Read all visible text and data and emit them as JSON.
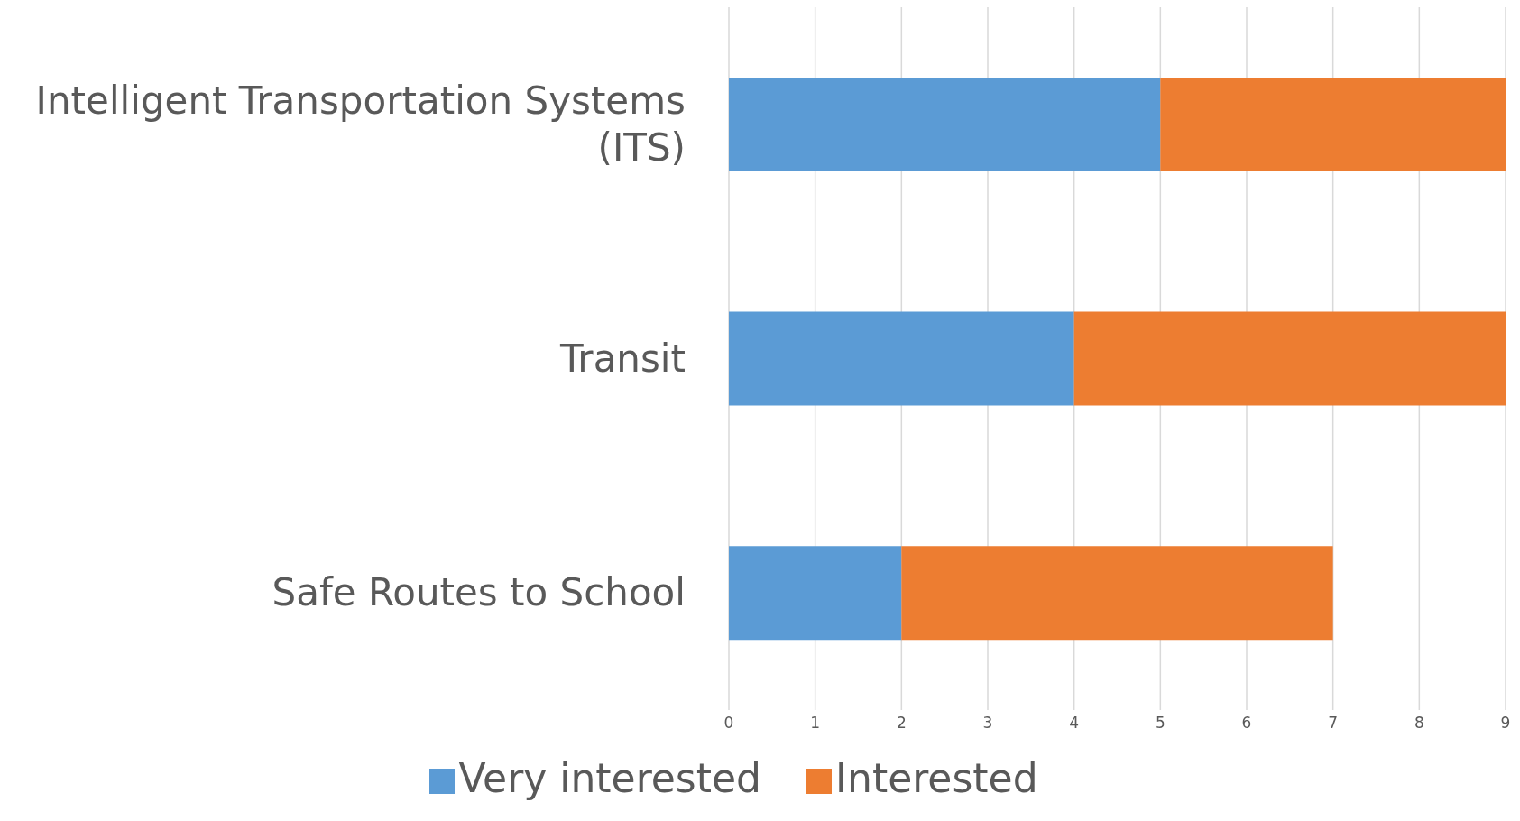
{
  "chart_data": {
    "type": "bar",
    "orientation": "horizontal",
    "stacked": true,
    "categories": [
      "Intelligent Transportation Systems (ITS)",
      "Transit",
      "Safe Routes to School"
    ],
    "series": [
      {
        "name": "Very interested",
        "color": "#5b9bd5",
        "values": [
          5,
          4,
          2
        ]
      },
      {
        "name": "Interested",
        "color": "#ed7d31",
        "values": [
          4,
          5,
          5
        ]
      }
    ],
    "xlim": [
      0,
      9
    ],
    "xticks": [
      0,
      1,
      2,
      3,
      4,
      5,
      6,
      7,
      8,
      9
    ],
    "grid": "x",
    "legend": "bottom"
  }
}
